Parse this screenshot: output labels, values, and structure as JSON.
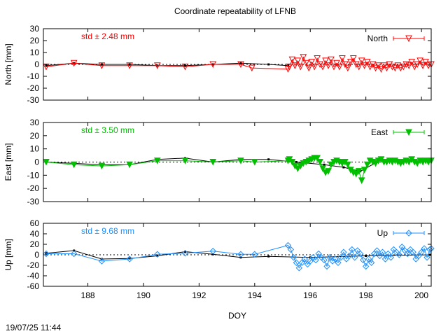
{
  "title": "Coordinate repeatability of LFNB",
  "timestamp": "19/07/25 11:44",
  "chart_data": {
    "type": "line",
    "xlabel": "DOY",
    "xlim": [
      186.4,
      200.35
    ],
    "xticks": [
      188,
      190,
      192,
      194,
      196,
      198,
      200
    ],
    "panels": [
      {
        "name": "North",
        "ylabel": "North [mm]",
        "ylim": [
          -30,
          30
        ],
        "yticks": [
          30,
          20,
          10,
          0,
          -10,
          -20,
          -30
        ],
        "color": "#ff0000",
        "marker": "triangle-down-open",
        "std_label": "std ± 2.48 mm",
        "legend": "North",
        "series_daily": [
          [
            186.5,
            -2
          ],
          [
            187.5,
            1
          ],
          [
            188.5,
            -1
          ],
          [
            189.5,
            -1
          ],
          [
            190.5,
            -1
          ],
          [
            191.5,
            -2
          ],
          [
            192.5,
            0
          ],
          [
            193.5,
            0
          ],
          [
            193.9,
            -3
          ],
          [
            195.2,
            -4
          ]
        ],
        "series_mean": [
          [
            186.5,
            -1
          ],
          [
            187.5,
            1
          ],
          [
            188.5,
            0
          ],
          [
            189.5,
            0
          ],
          [
            190.5,
            -1
          ],
          [
            191.5,
            -1
          ],
          [
            192.5,
            0
          ],
          [
            193.5,
            1
          ],
          [
            194.5,
            0
          ],
          [
            195.2,
            -1
          ]
        ],
        "subdaily": [
          [
            195.25,
            -2
          ],
          [
            195.35,
            4
          ],
          [
            195.45,
            -1
          ],
          [
            195.55,
            3
          ],
          [
            195.65,
            -2
          ],
          [
            195.75,
            6
          ],
          [
            195.85,
            1
          ],
          [
            195.95,
            -3
          ],
          [
            196.05,
            2
          ],
          [
            196.15,
            -2
          ],
          [
            196.25,
            5
          ],
          [
            196.35,
            0
          ],
          [
            196.45,
            -2
          ],
          [
            196.55,
            3
          ],
          [
            196.65,
            -1
          ],
          [
            196.75,
            4
          ],
          [
            196.85,
            -2
          ],
          [
            196.95,
            1
          ],
          [
            197.05,
            -2
          ],
          [
            197.15,
            5
          ],
          [
            197.25,
            0
          ],
          [
            197.35,
            -3
          ],
          [
            197.45,
            2
          ],
          [
            197.55,
            5
          ],
          [
            197.65,
            0
          ],
          [
            197.75,
            -2
          ],
          [
            197.85,
            3
          ],
          [
            197.95,
            -1
          ],
          [
            198.05,
            2
          ],
          [
            198.15,
            -2
          ],
          [
            198.25,
            0
          ],
          [
            198.35,
            -3
          ],
          [
            198.45,
            -1
          ],
          [
            198.55,
            -4
          ],
          [
            198.65,
            -1
          ],
          [
            198.75,
            -3
          ],
          [
            198.85,
            0
          ],
          [
            198.95,
            -2
          ],
          [
            199.05,
            -3
          ],
          [
            199.15,
            -1
          ],
          [
            199.25,
            -3
          ],
          [
            199.35,
            -2
          ],
          [
            199.45,
            0
          ],
          [
            199.55,
            -1
          ],
          [
            199.65,
            2
          ],
          [
            199.75,
            -2
          ],
          [
            199.85,
            0
          ],
          [
            199.95,
            3
          ],
          [
            200.05,
            -1
          ],
          [
            200.15,
            2
          ],
          [
            200.25,
            -1
          ],
          [
            200.35,
            0
          ]
        ]
      },
      {
        "name": "East",
        "ylabel": "East [mm]",
        "ylim": [
          -30,
          30
        ],
        "yticks": [
          30,
          20,
          10,
          0,
          -10,
          -20,
          -30
        ],
        "color": "#00c000",
        "marker": "triangle-down-filled",
        "std_label": "std ± 3.50 mm",
        "legend": "East",
        "series_daily": [
          [
            186.5,
            0
          ],
          [
            187.5,
            -2
          ],
          [
            188.5,
            -3
          ],
          [
            189.5,
            -2
          ],
          [
            190.5,
            1
          ],
          [
            191.5,
            1
          ],
          [
            192.5,
            0
          ],
          [
            193.5,
            1
          ],
          [
            194,
            0
          ],
          [
            195.2,
            1
          ]
        ],
        "series_mean": [
          [
            186.5,
            0
          ],
          [
            187.5,
            -1
          ],
          [
            188.5,
            -2
          ],
          [
            189.5,
            -2
          ],
          [
            190.5,
            2
          ],
          [
            191.5,
            3
          ],
          [
            192.5,
            0
          ],
          [
            193.5,
            2
          ],
          [
            194.5,
            2
          ],
          [
            195.5,
            0
          ],
          [
            196.5,
            -2
          ],
          [
            197.2,
            -4
          ],
          [
            197.8,
            -7
          ],
          [
            198.4,
            0
          ]
        ],
        "subdaily": [
          [
            195.25,
            2
          ],
          [
            195.35,
            0
          ],
          [
            195.45,
            -3
          ],
          [
            195.55,
            -5
          ],
          [
            195.65,
            -3
          ],
          [
            195.75,
            -1
          ],
          [
            195.85,
            0
          ],
          [
            195.95,
            1
          ],
          [
            196.05,
            2
          ],
          [
            196.15,
            3
          ],
          [
            196.25,
            3
          ],
          [
            196.35,
            0
          ],
          [
            196.45,
            -5
          ],
          [
            196.55,
            -8
          ],
          [
            196.65,
            -7
          ],
          [
            196.75,
            -2
          ],
          [
            196.85,
            0
          ],
          [
            196.95,
            1
          ],
          [
            197.05,
            0
          ],
          [
            197.15,
            -1
          ],
          [
            197.25,
            0
          ],
          [
            197.35,
            -2
          ],
          [
            197.45,
            -6
          ],
          [
            197.55,
            -8
          ],
          [
            197.65,
            -9
          ],
          [
            197.75,
            -7
          ],
          [
            197.85,
            -14
          ],
          [
            197.95,
            -6
          ],
          [
            198.05,
            -2
          ],
          [
            198.15,
            1
          ],
          [
            198.25,
            0
          ],
          [
            198.35,
            -1
          ],
          [
            198.45,
            1
          ],
          [
            198.55,
            2
          ],
          [
            198.65,
            0
          ],
          [
            198.75,
            0
          ],
          [
            198.85,
            1
          ],
          [
            198.95,
            0
          ],
          [
            199.05,
            1
          ],
          [
            199.15,
            0
          ],
          [
            199.25,
            -1
          ],
          [
            199.35,
            0
          ],
          [
            199.45,
            1
          ],
          [
            199.55,
            0
          ],
          [
            199.65,
            2
          ],
          [
            199.75,
            0
          ],
          [
            199.85,
            -1
          ],
          [
            199.95,
            1
          ],
          [
            200.05,
            0
          ],
          [
            200.15,
            1
          ],
          [
            200.25,
            0
          ],
          [
            200.35,
            1
          ]
        ]
      },
      {
        "name": "Up",
        "ylabel": "Up [mm]",
        "ylim": [
          -60,
          60
        ],
        "yticks": [
          60,
          40,
          20,
          0,
          -20,
          -40,
          -60
        ],
        "color": "#1e90ff",
        "marker": "diamond-open",
        "std_label": "std ± 9.68 mm",
        "legend": "Up",
        "series_daily": [
          [
            186.5,
            2
          ],
          [
            187.5,
            2
          ],
          [
            188.5,
            -12
          ],
          [
            189.5,
            -8
          ],
          [
            190.5,
            1
          ],
          [
            191.5,
            3
          ],
          [
            192.5,
            7
          ],
          [
            193.5,
            1
          ],
          [
            194,
            1
          ],
          [
            195.2,
            18
          ]
        ],
        "series_mean": [
          [
            186.5,
            3
          ],
          [
            187.5,
            8
          ],
          [
            188.5,
            -8
          ],
          [
            189.5,
            -7
          ],
          [
            190.5,
            -2
          ],
          [
            191.5,
            6
          ],
          [
            192.5,
            1
          ],
          [
            193.5,
            -5
          ],
          [
            194.5,
            -3
          ],
          [
            196,
            -5
          ],
          [
            198,
            -2
          ],
          [
            200.3,
            0
          ]
        ],
        "subdaily": [
          [
            195.3,
            10
          ],
          [
            195.4,
            -5
          ],
          [
            195.5,
            -15
          ],
          [
            195.6,
            -25
          ],
          [
            195.7,
            -15
          ],
          [
            195.8,
            -8
          ],
          [
            195.9,
            -18
          ],
          [
            196.0,
            -12
          ],
          [
            196.1,
            -5
          ],
          [
            196.2,
            -10
          ],
          [
            196.3,
            2
          ],
          [
            196.4,
            -5
          ],
          [
            196.5,
            -10
          ],
          [
            196.6,
            -22
          ],
          [
            196.7,
            -5
          ],
          [
            196.8,
            -12
          ],
          [
            196.9,
            -8
          ],
          [
            197.0,
            -15
          ],
          [
            197.1,
            -5
          ],
          [
            197.2,
            5
          ],
          [
            197.3,
            -8
          ],
          [
            197.4,
            -2
          ],
          [
            197.5,
            10
          ],
          [
            197.6,
            -5
          ],
          [
            197.7,
            8
          ],
          [
            197.8,
            2
          ],
          [
            197.9,
            -10
          ],
          [
            198.0,
            -22
          ],
          [
            198.1,
            -8
          ],
          [
            198.2,
            -15
          ],
          [
            198.3,
            2
          ],
          [
            198.4,
            8
          ],
          [
            198.5,
            -2
          ],
          [
            198.6,
            5
          ],
          [
            198.7,
            -8
          ],
          [
            198.8,
            2
          ],
          [
            198.9,
            -5
          ],
          [
            199.0,
            10
          ],
          [
            199.1,
            5
          ],
          [
            199.2,
            0
          ],
          [
            199.3,
            15
          ],
          [
            199.4,
            8
          ],
          [
            199.5,
            2
          ],
          [
            199.6,
            10
          ],
          [
            199.7,
            5
          ],
          [
            199.8,
            -8
          ],
          [
            199.9,
            -2
          ],
          [
            200.0,
            5
          ],
          [
            200.1,
            12
          ],
          [
            200.2,
            -5
          ],
          [
            200.3,
            10
          ],
          [
            200.35,
            12
          ]
        ]
      }
    ]
  }
}
